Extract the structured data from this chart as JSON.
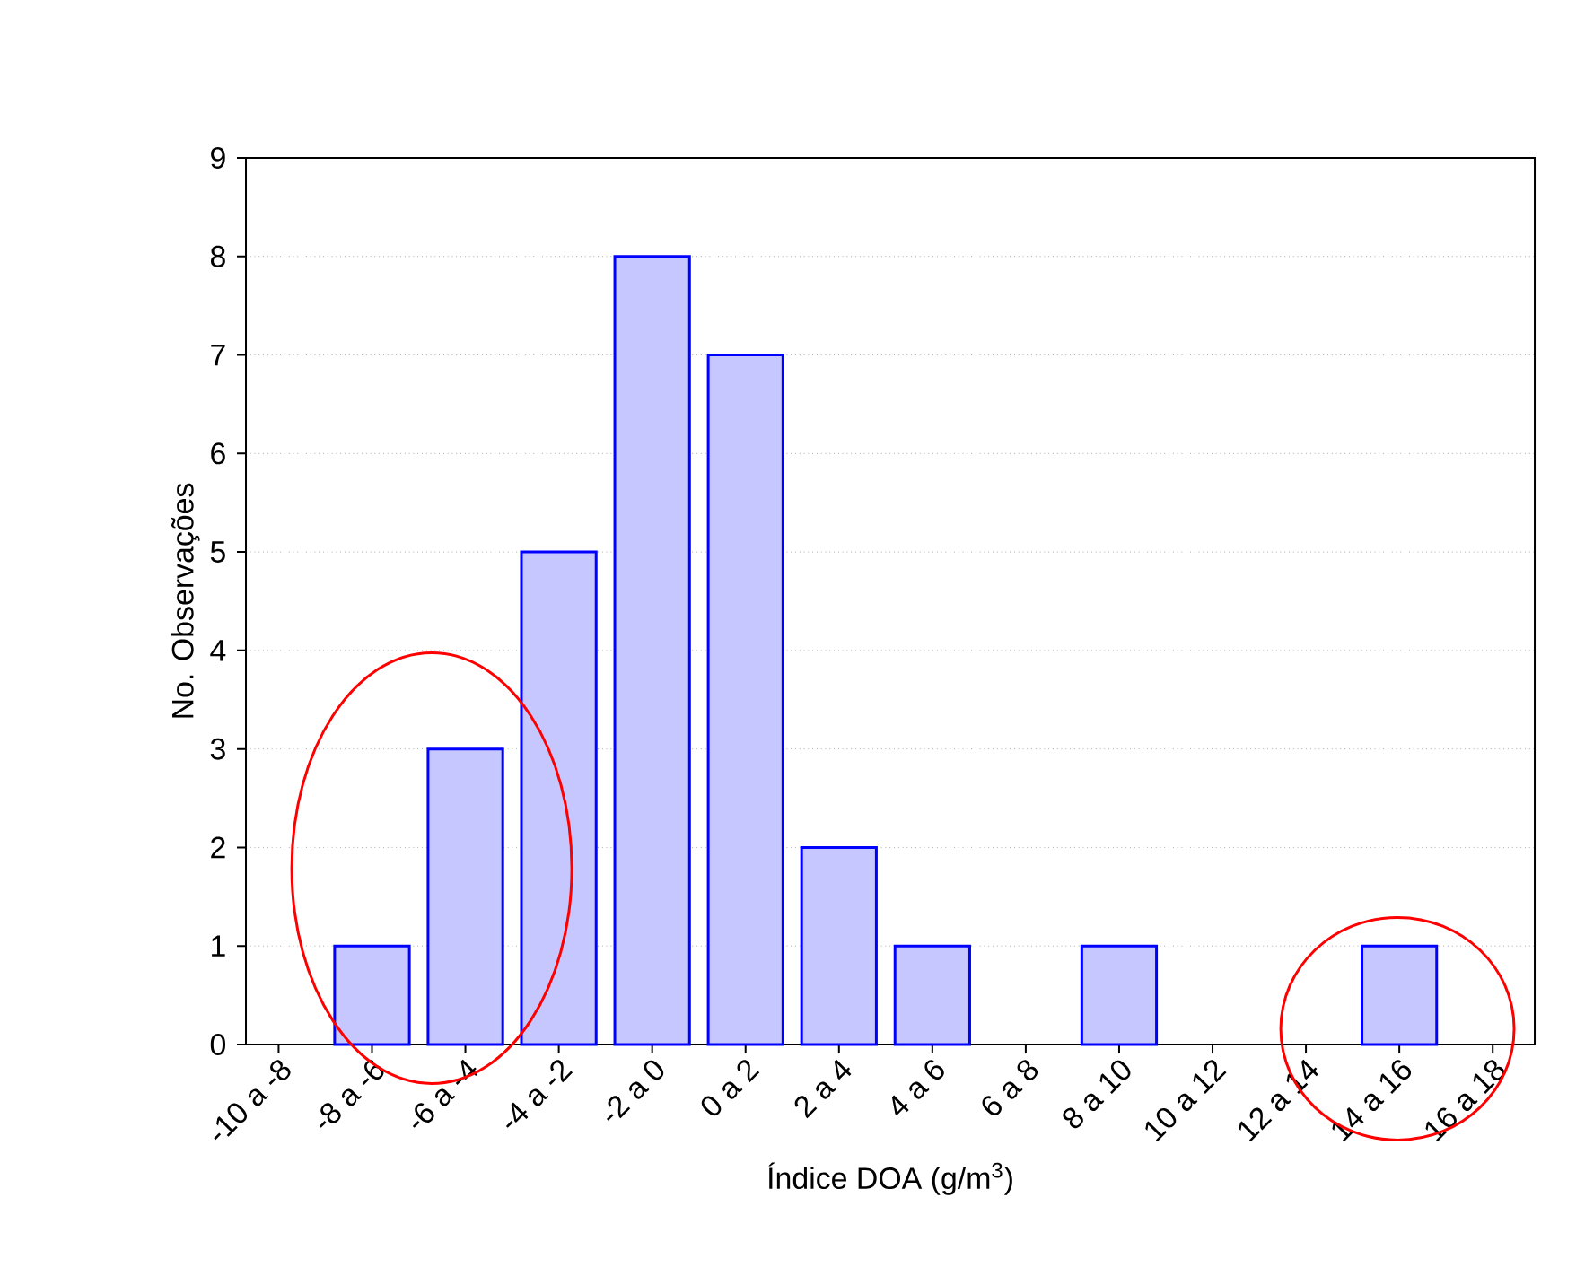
{
  "chart_data": {
    "type": "bar",
    "xlabel": "Índice DOA (g/m$^{3}$)",
    "ylabel": "No. Observações",
    "categories": [
      "-10 a -8",
      "-8 a -6",
      "-6 a -4",
      "-4 a -2",
      "-2 a 0",
      "0 a 2",
      "2 a 4",
      "4 a 6",
      "6 a 8",
      "8 a 10",
      "10 a 12",
      "12 a 14",
      "14 a 16",
      "16 a 18"
    ],
    "values": [
      0,
      1,
      3,
      5,
      8,
      7,
      2,
      1,
      0,
      1,
      0,
      0,
      1,
      0
    ],
    "color": "#0000ff",
    "ylim": [
      0,
      9
    ],
    "yticks": [
      0,
      1,
      2,
      3,
      4,
      5,
      6,
      7,
      8,
      9
    ],
    "grid": "y"
  }
}
